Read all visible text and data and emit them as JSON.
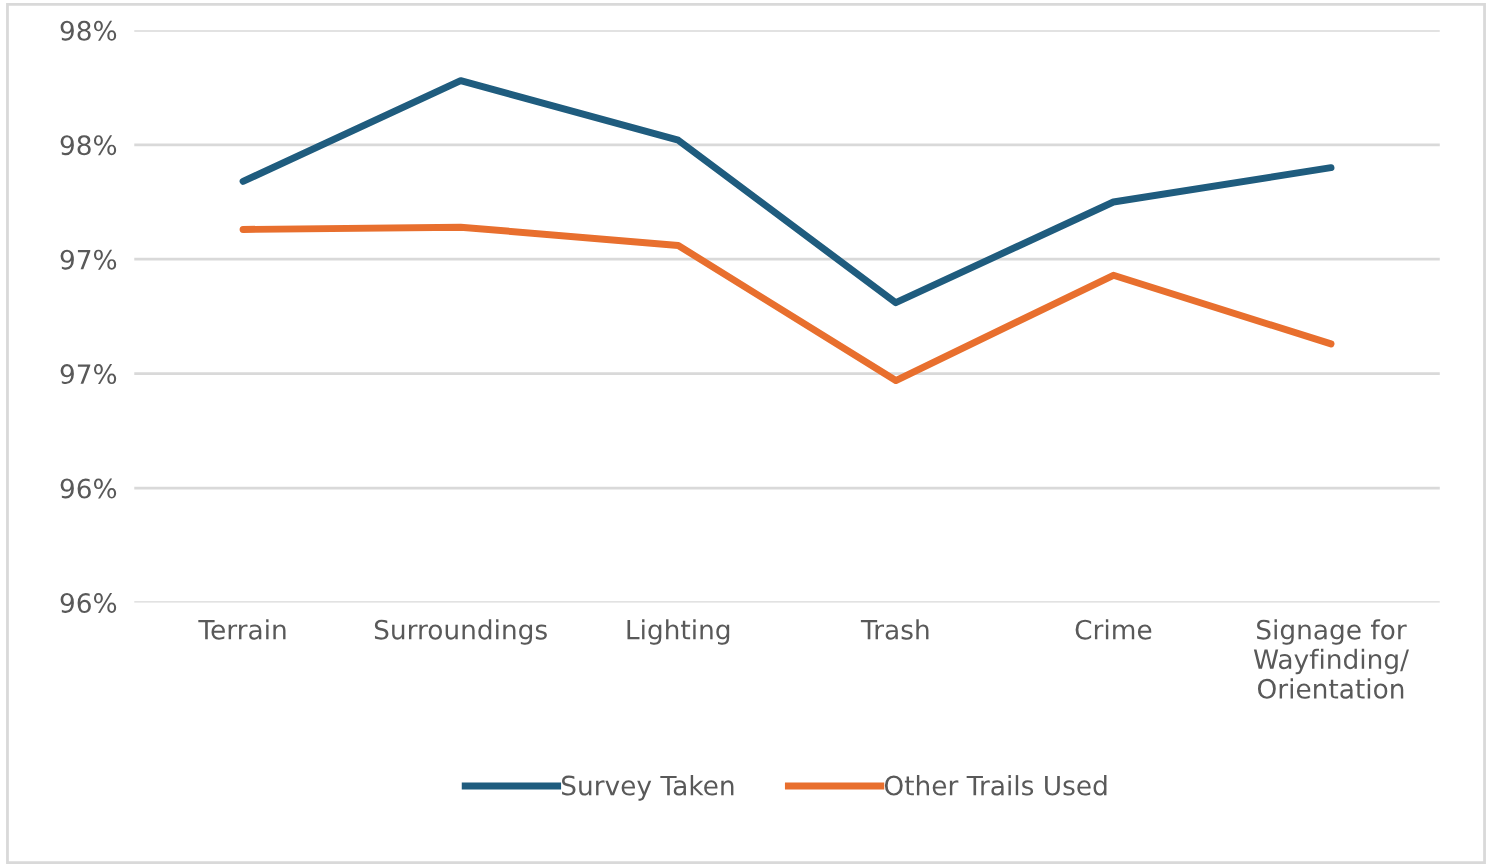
{
  "chart_data": {
    "type": "line",
    "categories": [
      "Terrain",
      "Surroundings",
      "Lighting",
      "Trash",
      "Crime",
      "Signage for Wayfinding/ Orientation"
    ],
    "series": [
      {
        "name": "Survey Taken",
        "color": "#1f5c7e",
        "values": [
          97.34,
          97.78,
          97.52,
          96.81,
          97.25,
          97.4
        ]
      },
      {
        "name": "Other Trails Used",
        "color": "#e86f2e",
        "values": [
          97.13,
          97.14,
          97.06,
          96.47,
          96.93,
          96.63
        ]
      }
    ],
    "ylim": [
      95.5,
      98.0
    ],
    "yticks": [
      {
        "value": 95.5,
        "label": "96%"
      },
      {
        "value": 96.0,
        "label": "96%"
      },
      {
        "value": 96.5,
        "label": "97%"
      },
      {
        "value": 97.0,
        "label": "97%"
      },
      {
        "value": 97.5,
        "label": "98%"
      },
      {
        "value": 98.0,
        "label": "98%"
      }
    ],
    "grid": "y",
    "legend": "bottom",
    "marker": "none",
    "line_style": "solid"
  }
}
